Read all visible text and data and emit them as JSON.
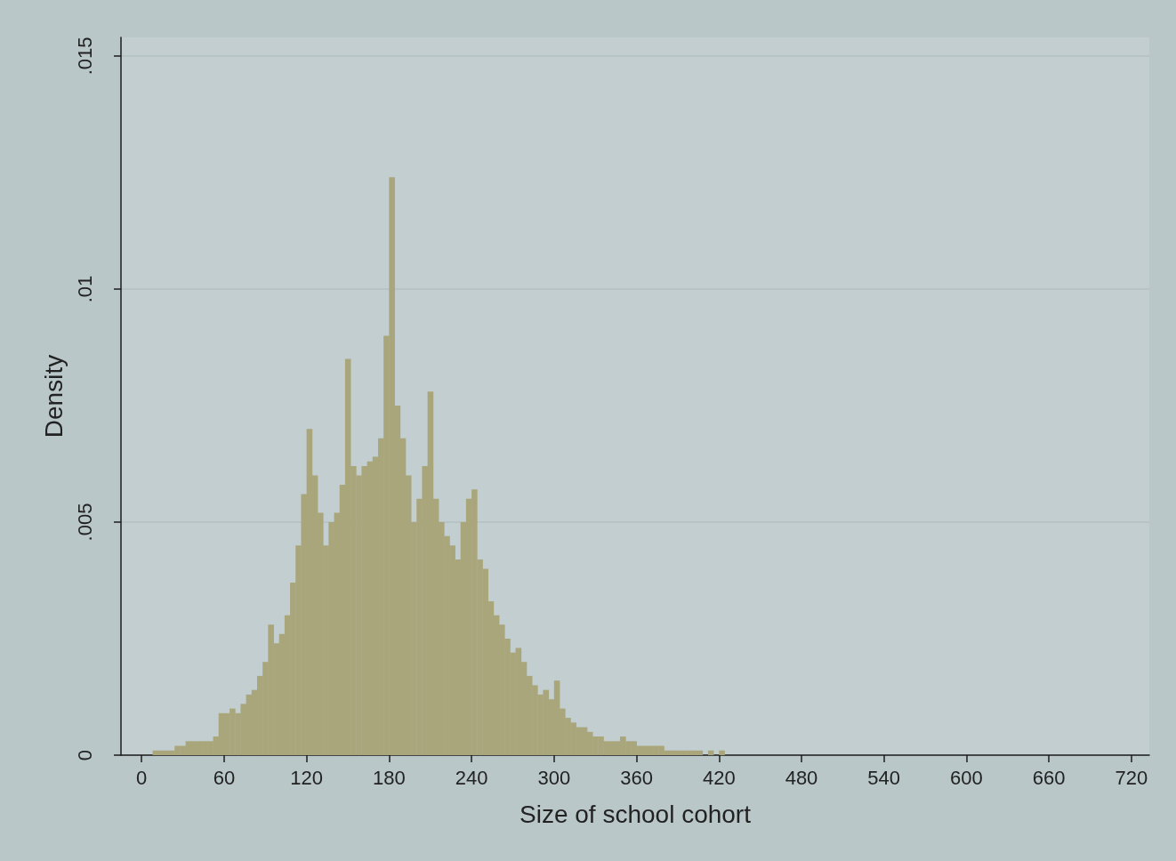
{
  "chart_data": {
    "type": "histogram",
    "xlabel": "Size of school cohort",
    "ylabel": "Density",
    "color": "#aaa67c",
    "bins": [
      8,
      12,
      16,
      20,
      24,
      28,
      32,
      36,
      40,
      44,
      48,
      52,
      56,
      60,
      64,
      68,
      72,
      76,
      80,
      84,
      88,
      92,
      96,
      100,
      104,
      108,
      112,
      116,
      120,
      124,
      128,
      132,
      136,
      140,
      144,
      148,
      152,
      156,
      160,
      164,
      168,
      172,
      176,
      180,
      184,
      188,
      192,
      196,
      200,
      204,
      208,
      212,
      216,
      220,
      224,
      228,
      232,
      236,
      240,
      244,
      248,
      252,
      256,
      260,
      264,
      268,
      272,
      276,
      280,
      284,
      288,
      292,
      296,
      300,
      304,
      308,
      312,
      316,
      320,
      324,
      328,
      332,
      336,
      340,
      344,
      348,
      352,
      356,
      360,
      364,
      368,
      372,
      376,
      380,
      384,
      388,
      392,
      396,
      400,
      404,
      408,
      412,
      416,
      420,
      424,
      428
    ],
    "values": [
      0.0001,
      0.0001,
      0.0001,
      0.0001,
      0.0002,
      0.0002,
      0.0003,
      0.0003,
      0.0003,
      0.0003,
      0.0003,
      0.0004,
      0.0009,
      0.0009,
      0.001,
      0.0009,
      0.0011,
      0.0013,
      0.0014,
      0.0017,
      0.002,
      0.0028,
      0.0024,
      0.0026,
      0.003,
      0.0037,
      0.0045,
      0.0056,
      0.007,
      0.006,
      0.0052,
      0.0045,
      0.005,
      0.0052,
      0.0058,
      0.0085,
      0.0062,
      0.006,
      0.0062,
      0.0063,
      0.0064,
      0.0068,
      0.009,
      0.0124,
      0.0075,
      0.0068,
      0.006,
      0.005,
      0.0055,
      0.0062,
      0.0078,
      0.0055,
      0.005,
      0.0047,
      0.0045,
      0.0042,
      0.005,
      0.0055,
      0.0057,
      0.0042,
      0.004,
      0.0033,
      0.003,
      0.0028,
      0.0025,
      0.0022,
      0.0023,
      0.002,
      0.0017,
      0.0015,
      0.0013,
      0.0014,
      0.0012,
      0.0016,
      0.001,
      0.0008,
      0.0007,
      0.0006,
      0.0006,
      0.0005,
      0.0004,
      0.0004,
      0.0003,
      0.0003,
      0.0003,
      0.0004,
      0.0003,
      0.0003,
      0.0002,
      0.0002,
      0.0002,
      0.0002,
      0.0002,
      0.0001,
      0.0001,
      0.0001,
      0.0001,
      0.0001,
      0.0001,
      0.0001,
      0,
      0.0001,
      0,
      0.0001,
      0
    ],
    "xlim": [
      -15,
      733
    ],
    "xticks": [
      0,
      60,
      120,
      180,
      240,
      300,
      360,
      420,
      480,
      540,
      600,
      660,
      720
    ],
    "ylim": [
      0,
      0.0154
    ],
    "yticks": [
      {
        "value": 0,
        "label": "0"
      },
      {
        "value": 0.005,
        "label": ".005"
      },
      {
        "value": 0.01,
        "label": ".01"
      },
      {
        "value": 0.015,
        "label": ".015"
      }
    ],
    "grid": "y"
  }
}
